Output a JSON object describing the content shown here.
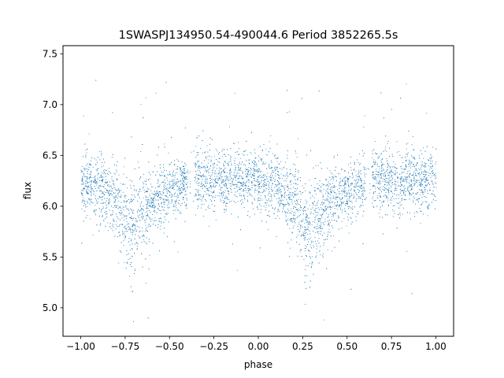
{
  "chart_data": {
    "type": "scatter",
    "title": "1SWASPJ134950.54-490044.6 Period 3852265.5s",
    "xlabel": "phase",
    "ylabel": "flux",
    "xlim": [
      -1.1,
      1.1
    ],
    "ylim": [
      4.72,
      7.58
    ],
    "x_ticks": [
      -1.0,
      -0.75,
      -0.5,
      -0.25,
      0.0,
      0.25,
      0.5,
      0.75,
      1.0
    ],
    "x_tick_labels": [
      "−1.00",
      "−0.75",
      "−0.50",
      "−0.25",
      "0.00",
      "0.25",
      "0.50",
      "0.75",
      "1.00"
    ],
    "y_ticks": [
      5.0,
      5.5,
      6.0,
      6.5,
      7.0,
      7.5
    ],
    "y_tick_labels": [
      "5.0",
      "5.5",
      "6.0",
      "6.5",
      "7.0",
      "7.5"
    ],
    "grid": false,
    "legend": "none",
    "marker_color": "#1f77b4",
    "series": [
      {
        "phase_range": [
          -1.0,
          1.0
        ],
        "profile": {
          "x": [
            -1.0,
            -0.9,
            -0.8,
            -0.72,
            -0.65,
            -0.55,
            -0.45,
            -0.35,
            -0.25,
            -0.15,
            -0.05,
            0.0,
            0.1,
            0.2,
            0.28,
            0.35,
            0.45,
            0.55,
            0.65,
            0.75,
            0.85,
            0.95,
            1.0
          ],
          "median_flux": [
            6.25,
            6.2,
            6.05,
            5.75,
            5.95,
            6.1,
            6.2,
            6.28,
            6.25,
            6.25,
            6.25,
            6.25,
            6.2,
            6.05,
            5.75,
            5.95,
            6.1,
            6.2,
            6.28,
            6.25,
            6.25,
            6.25,
            6.25
          ],
          "spread": [
            0.15,
            0.15,
            0.18,
            0.25,
            0.2,
            0.15,
            0.13,
            0.15,
            0.15,
            0.15,
            0.15,
            0.15,
            0.15,
            0.18,
            0.25,
            0.2,
            0.15,
            0.13,
            0.15,
            0.15,
            0.15,
            0.15,
            0.15
          ]
        },
        "gaps": [
          [
            -0.4,
            -0.36
          ],
          [
            0.6,
            0.64
          ]
        ],
        "flux_min": 4.86,
        "flux_max": 7.52
      }
    ]
  }
}
